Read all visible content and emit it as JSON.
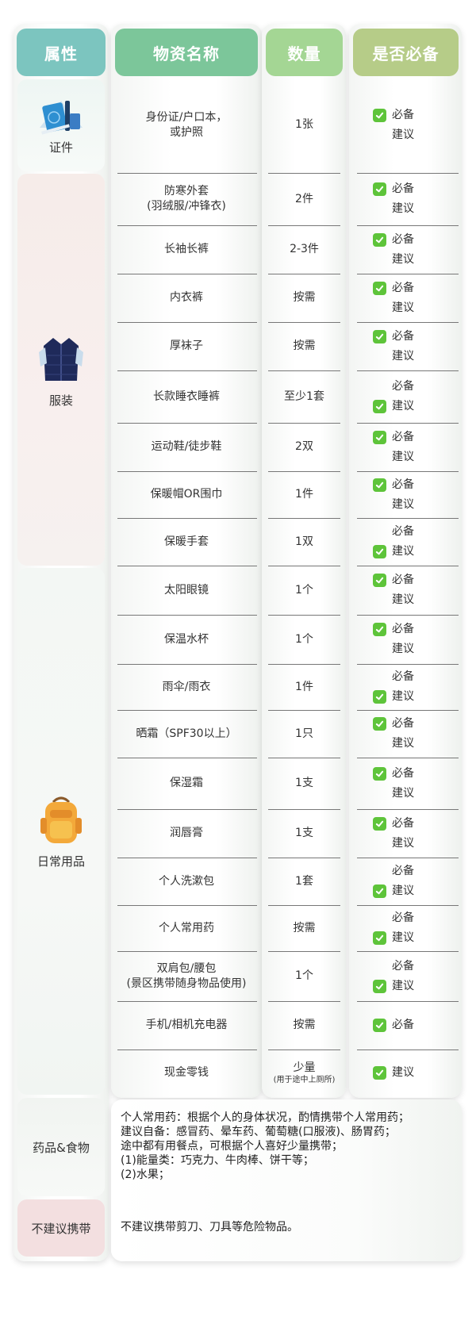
{
  "header": {
    "attribute": "属性",
    "item": "物资名称",
    "quantity": "数量",
    "required": "是否必备"
  },
  "colors": {
    "attribute_header": "#7cc5bf",
    "item_header": "#7cc69a",
    "quantity_header": "#a4d694",
    "required_header": "#b6cc88",
    "check": "#5ec43a"
  },
  "req_labels": {
    "required": "必备",
    "suggested": "建议"
  },
  "categories": [
    {
      "label": "证件",
      "icon": "passport-icon"
    },
    {
      "label": "服装",
      "icon": "vest-icon"
    },
    {
      "label": "日常用品",
      "icon": "backpack-icon"
    }
  ],
  "rows": [
    {
      "item": "身份证/户口本，\n或护照",
      "qty": "1张",
      "checked": "required"
    },
    {
      "item": "防寒外套\n(羽绒服/冲锋衣)",
      "qty": "2件",
      "checked": "required"
    },
    {
      "item": "长袖长裤",
      "qty": "2-3件",
      "checked": "required"
    },
    {
      "item": "内衣裤",
      "qty": "按需",
      "checked": "required"
    },
    {
      "item": "厚袜子",
      "qty": "按需",
      "checked": "required"
    },
    {
      "item": "长款睡衣睡裤",
      "qty": "至少1套",
      "checked": "suggested"
    },
    {
      "item": "运动鞋/徒步鞋",
      "qty": "2双",
      "checked": "required"
    },
    {
      "item": "保暖帽OR围巾",
      "qty": "1件",
      "checked": "required"
    },
    {
      "item": "保暖手套",
      "qty": "1双",
      "checked": "suggested"
    },
    {
      "item": "太阳眼镜",
      "qty": "1个",
      "checked": "required"
    },
    {
      "item": "保温水杯",
      "qty": "1个",
      "checked": "required"
    },
    {
      "item": "雨伞/雨衣",
      "qty": "1件",
      "checked": "suggested"
    },
    {
      "item": "晒霜（SPF30以上）",
      "qty": "1只",
      "checked": "required"
    },
    {
      "item": "保湿霜",
      "qty": "1支",
      "checked": "required"
    },
    {
      "item": "润唇膏",
      "qty": "1支",
      "checked": "required"
    },
    {
      "item": "个人洗漱包",
      "qty": "1套",
      "checked": "suggested"
    },
    {
      "item": "个人常用药",
      "qty": "按需",
      "checked": "suggested"
    },
    {
      "item": "双肩包/腰包\n(景区携带随身物品使用)",
      "qty": "1个",
      "checked": "suggested"
    },
    {
      "item": "手机/相机充电器",
      "qty": "按需",
      "checked": "required",
      "single": true
    },
    {
      "item": "现金零钱",
      "qty": "少量",
      "qty_note": "(用于途中上厕所)",
      "checked": "suggested",
      "single": true
    }
  ],
  "medicine_food": {
    "label": "药品&食物",
    "lines": [
      "个人常用药：根据个人的身体状况，酌情携带个人常用药；",
      "建议自备：感冒药、晕车药、葡萄糖(口服液)、肠胃药；",
      "途中都有用餐点，可根据个人喜好少量携带；",
      "(1)能量类：巧克力、牛肉棒、饼干等；",
      "(2)水果；"
    ]
  },
  "not_recommended": {
    "label": "不建议携带",
    "text": "不建议携带剪刀、刀具等危险物品。"
  }
}
